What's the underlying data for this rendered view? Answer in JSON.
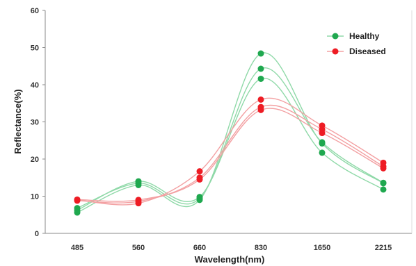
{
  "chart_data": {
    "type": "line",
    "title": "",
    "xlabel": "Wavelength(nm)",
    "ylabel": "Reflectance(%)",
    "categories": [
      "485",
      "560",
      "660",
      "830",
      "1650",
      "2215"
    ],
    "ylim": [
      0,
      60
    ],
    "yticks": [
      "0",
      "10",
      "20",
      "30",
      "40",
      "50",
      "60"
    ],
    "grid": false,
    "legend_position": "top-right",
    "smooth": true,
    "groups": [
      {
        "name": "Healthy",
        "color": "#1fa84f",
        "line_color": "#8fd9a8",
        "series": [
          {
            "values": [
              5.6,
              13.0,
              9.0,
              48.4,
              24.2,
              13.5
            ]
          },
          {
            "values": [
              6.8,
              13.5,
              9.4,
              44.3,
              24.5,
              13.6
            ]
          },
          {
            "values": [
              6.2,
              14.0,
              9.8,
              41.6,
              21.7,
              11.8
            ]
          }
        ]
      },
      {
        "name": "Diseased",
        "color": "#ee1c24",
        "line_color": "#f3a0a2",
        "series": [
          {
            "values": [
              9.0,
              8.1,
              16.7,
              36.0,
              29.0,
              19.0
            ]
          },
          {
            "values": [
              8.8,
              8.6,
              15.0,
              34.0,
              28.0,
              18.0
            ]
          },
          {
            "values": [
              9.1,
              9.0,
              14.5,
              33.2,
              27.0,
              17.5
            ]
          }
        ]
      }
    ]
  }
}
